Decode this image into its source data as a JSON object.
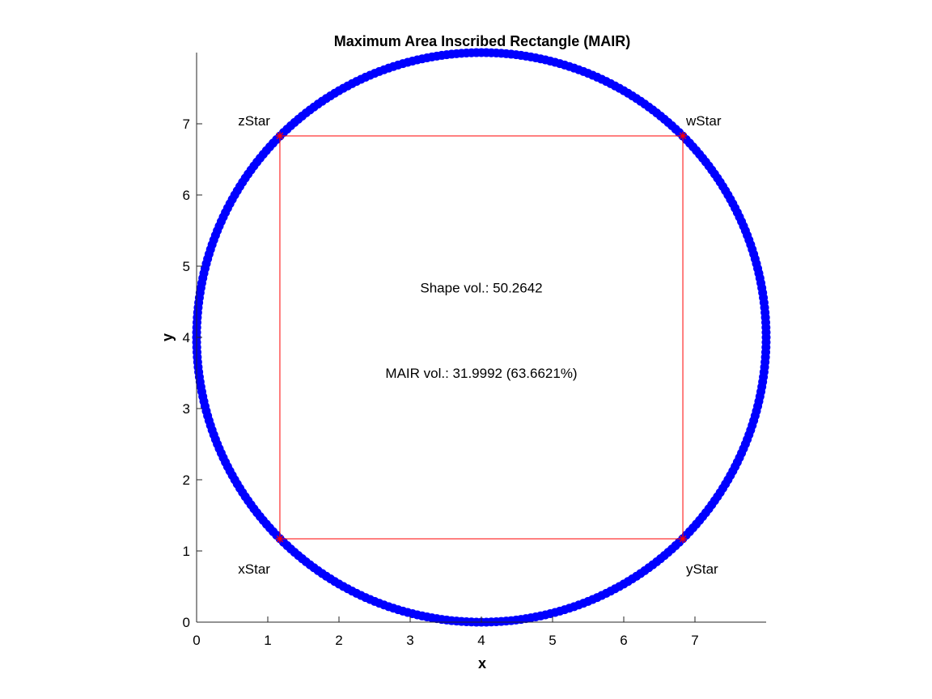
{
  "chart_data": {
    "type": "scatter",
    "title": "Maximum Area Inscribed Rectangle (MAIR)",
    "xlabel": "x",
    "ylabel": "y",
    "xlim": [
      0,
      8
    ],
    "ylim": [
      0,
      8
    ],
    "xticks": [
      0,
      1,
      2,
      3,
      4,
      5,
      6,
      7
    ],
    "yticks": [
      0,
      1,
      2,
      3,
      4,
      5,
      6,
      7
    ],
    "grid": false,
    "colors": {
      "shape": "#0000ff",
      "rectangle": "#ff0000",
      "axes": "#262626"
    },
    "shape": {
      "kind": "circle",
      "center": [
        4,
        4
      ],
      "radius": 4,
      "marker": "o",
      "point_count": 360
    },
    "rectangle": {
      "corners": [
        [
          1.17,
          1.17
        ],
        [
          6.83,
          1.17
        ],
        [
          6.83,
          6.83
        ],
        [
          1.17,
          6.83
        ]
      ],
      "marker": "*"
    },
    "point_labels": [
      {
        "text": "xStar",
        "x": 1.17,
        "y": 1.17
      },
      {
        "text": "yStar",
        "x": 6.83,
        "y": 1.17
      },
      {
        "text": "zStar",
        "x": 1.17,
        "y": 6.83
      },
      {
        "text": "wStar",
        "x": 6.83,
        "y": 6.83
      }
    ],
    "annotations": [
      {
        "text": "Shape vol.: 50.2642",
        "x": 4.0,
        "y": 4.7
      },
      {
        "text": "MAIR vol.: 31.9992 (63.6621%)",
        "x": 4.0,
        "y": 3.5
      }
    ]
  }
}
